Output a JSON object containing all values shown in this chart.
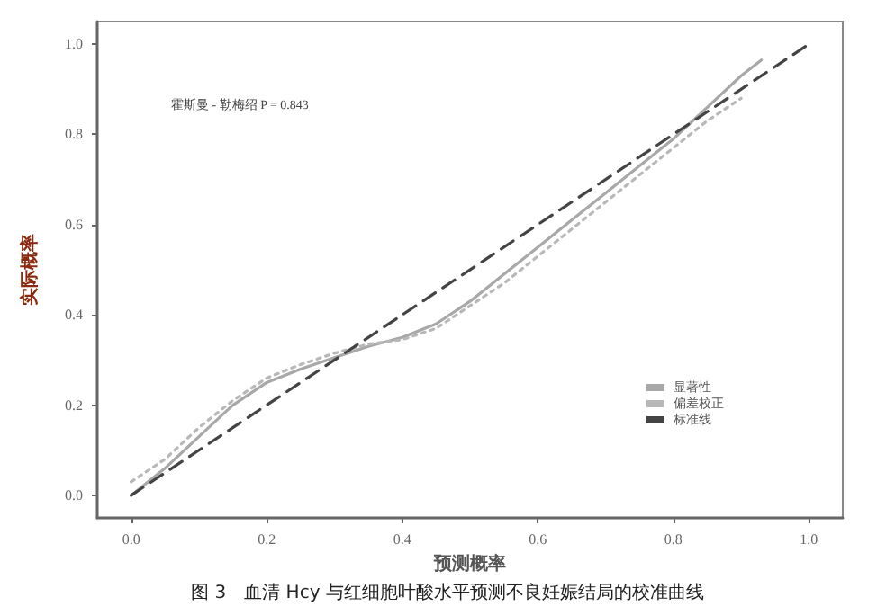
{
  "chart_data": {
    "type": "line",
    "title": "图 3　血清 Hcy 与红细胞叶酸水平预测不良妊娠结局的校准曲线",
    "xlabel": "预测概率",
    "ylabel": "实际概率",
    "annotations": [
      "霍斯曼 - 勒梅绍 P = 0.843"
    ],
    "series": [
      {
        "name": "显著性",
        "color": "#a8a8a8",
        "line_style": "solid",
        "x": [
          0,
          0.05,
          0.1,
          0.15,
          0.2,
          0.25,
          0.3,
          0.35,
          0.4,
          0.45,
          0.5,
          0.55,
          0.6,
          0.65,
          0.7,
          0.75,
          0.8,
          0.85,
          0.9,
          0.93
        ],
        "values": [
          0,
          0.06,
          0.13,
          0.2,
          0.25,
          0.28,
          0.305,
          0.33,
          0.35,
          0.38,
          0.43,
          0.49,
          0.55,
          0.61,
          0.67,
          0.73,
          0.79,
          0.86,
          0.93,
          0.965
        ]
      },
      {
        "name": "偏差校正",
        "color": "#b8b8b8",
        "line_style": "dotted",
        "x": [
          0,
          0.05,
          0.1,
          0.15,
          0.2,
          0.25,
          0.3,
          0.35,
          0.4,
          0.45,
          0.5,
          0.55,
          0.6,
          0.65,
          0.7,
          0.75,
          0.8,
          0.85,
          0.9
        ],
        "values": [
          0.03,
          0.08,
          0.15,
          0.21,
          0.26,
          0.29,
          0.315,
          0.335,
          0.345,
          0.37,
          0.42,
          0.47,
          0.53,
          0.59,
          0.65,
          0.71,
          0.77,
          0.83,
          0.88
        ]
      },
      {
        "name": "标准线",
        "color": "#444444",
        "line_style": "dashed",
        "x": [
          0,
          1
        ],
        "values": [
          0,
          1
        ]
      }
    ],
    "xlim": [
      -0.05,
      1.05
    ],
    "ylim": [
      -0.05,
      1.05
    ],
    "xticks": [
      {
        "value": 0,
        "label": "0.0"
      },
      {
        "value": 0.2,
        "label": "0.2"
      },
      {
        "value": 0.4,
        "label": "0.4"
      },
      {
        "value": 0.6,
        "label": "0.6"
      },
      {
        "value": 0.8,
        "label": "0.8"
      },
      {
        "value": 1,
        "label": "1.0"
      }
    ],
    "yticks": [
      {
        "value": 0,
        "label": "0.0"
      },
      {
        "value": 0.2,
        "label": "0.2"
      },
      {
        "value": 0.4,
        "label": "0.4"
      },
      {
        "value": 0.6,
        "label": "0.6"
      },
      {
        "value": 0.8,
        "label": "0.8"
      },
      {
        "value": 1,
        "label": "1.0"
      }
    ],
    "grid": false,
    "legend": "bottom right",
    "marker": "none"
  }
}
